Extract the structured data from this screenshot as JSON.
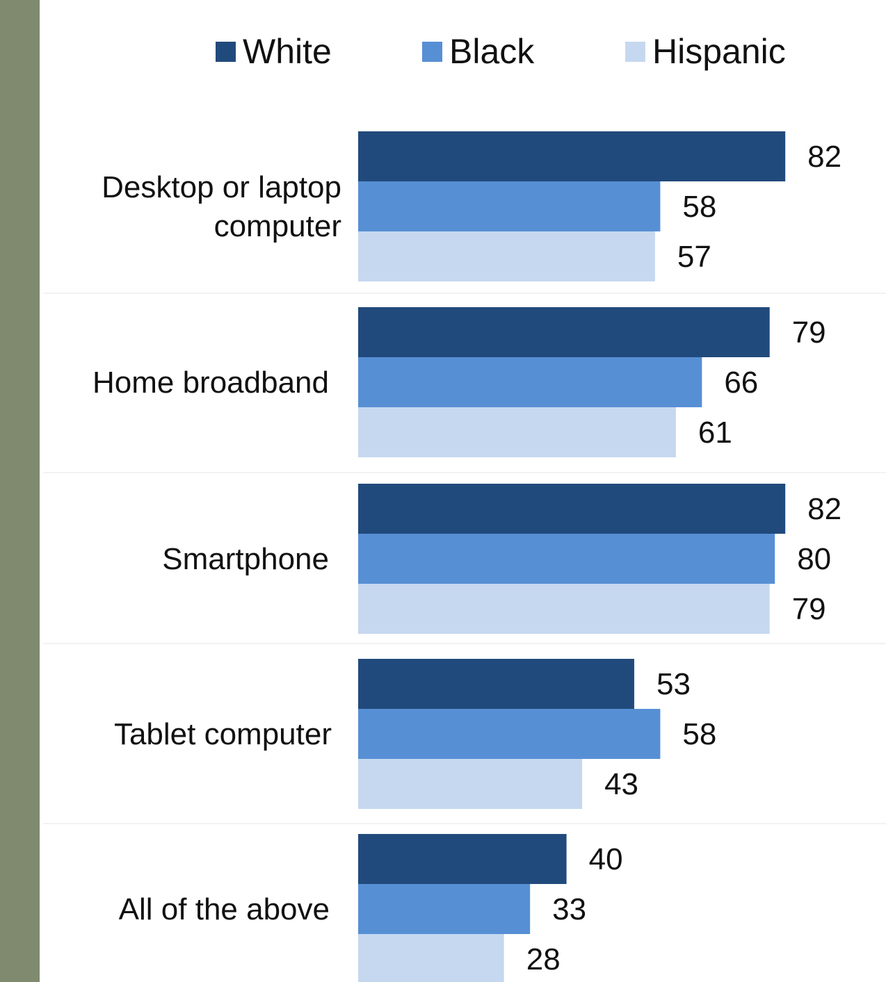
{
  "colors": {
    "side_strip": "#7f8a6f",
    "White": "#214a7c",
    "Black": "#578fd5",
    "Hispanic": "#c6d8ef",
    "separator": "#e6e6e6"
  },
  "legend": [
    {
      "name": "White"
    },
    {
      "name": "Black"
    },
    {
      "name": "Hispanic"
    }
  ],
  "chart_data": {
    "type": "bar",
    "orientation": "horizontal",
    "categories": [
      [
        "Desktop or laptop",
        "computer"
      ],
      [
        "Home broadband"
      ],
      [
        "Smartphone"
      ],
      [
        "Tablet computer"
      ],
      [
        "All of the above"
      ]
    ],
    "series": [
      {
        "name": "White",
        "values": [
          82,
          79,
          82,
          53,
          40
        ]
      },
      {
        "name": "Black",
        "values": [
          58,
          66,
          80,
          58,
          33
        ]
      },
      {
        "name": "Hispanic",
        "values": [
          57,
          61,
          79,
          43,
          28
        ]
      }
    ],
    "xlim": [
      0,
      100
    ],
    "grid": false,
    "legend_position": "top",
    "data_labels": true
  }
}
